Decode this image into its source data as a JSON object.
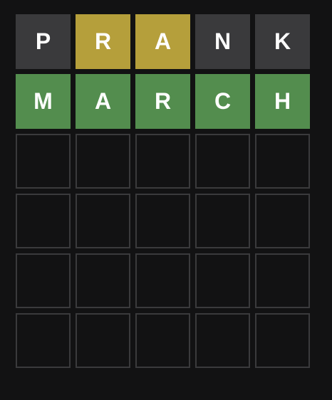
{
  "board": {
    "rows": [
      {
        "tiles": [
          {
            "letter": "P",
            "state": "absent"
          },
          {
            "letter": "R",
            "state": "present"
          },
          {
            "letter": "A",
            "state": "present"
          },
          {
            "letter": "N",
            "state": "absent"
          },
          {
            "letter": "K",
            "state": "absent"
          }
        ]
      },
      {
        "tiles": [
          {
            "letter": "M",
            "state": "correct"
          },
          {
            "letter": "A",
            "state": "correct"
          },
          {
            "letter": "R",
            "state": "correct"
          },
          {
            "letter": "C",
            "state": "correct"
          },
          {
            "letter": "H",
            "state": "correct"
          }
        ]
      },
      {
        "tiles": [
          {
            "letter": "",
            "state": "empty"
          },
          {
            "letter": "",
            "state": "empty"
          },
          {
            "letter": "",
            "state": "empty"
          },
          {
            "letter": "",
            "state": "empty"
          },
          {
            "letter": "",
            "state": "empty"
          }
        ]
      },
      {
        "tiles": [
          {
            "letter": "",
            "state": "empty"
          },
          {
            "letter": "",
            "state": "empty"
          },
          {
            "letter": "",
            "state": "empty"
          },
          {
            "letter": "",
            "state": "empty"
          },
          {
            "letter": "",
            "state": "empty"
          }
        ]
      },
      {
        "tiles": [
          {
            "letter": "",
            "state": "empty"
          },
          {
            "letter": "",
            "state": "empty"
          },
          {
            "letter": "",
            "state": "empty"
          },
          {
            "letter": "",
            "state": "empty"
          },
          {
            "letter": "",
            "state": "empty"
          }
        ]
      },
      {
        "tiles": [
          {
            "letter": "",
            "state": "empty"
          },
          {
            "letter": "",
            "state": "empty"
          },
          {
            "letter": "",
            "state": "empty"
          },
          {
            "letter": "",
            "state": "empty"
          },
          {
            "letter": "",
            "state": "empty"
          }
        ]
      }
    ]
  },
  "colors": {
    "background": "#121213",
    "absent": "#3a3a3c",
    "present": "#b59f3b",
    "correct": "#538d4e",
    "empty_border": "#3a3a3c",
    "letter": "#ffffff"
  }
}
